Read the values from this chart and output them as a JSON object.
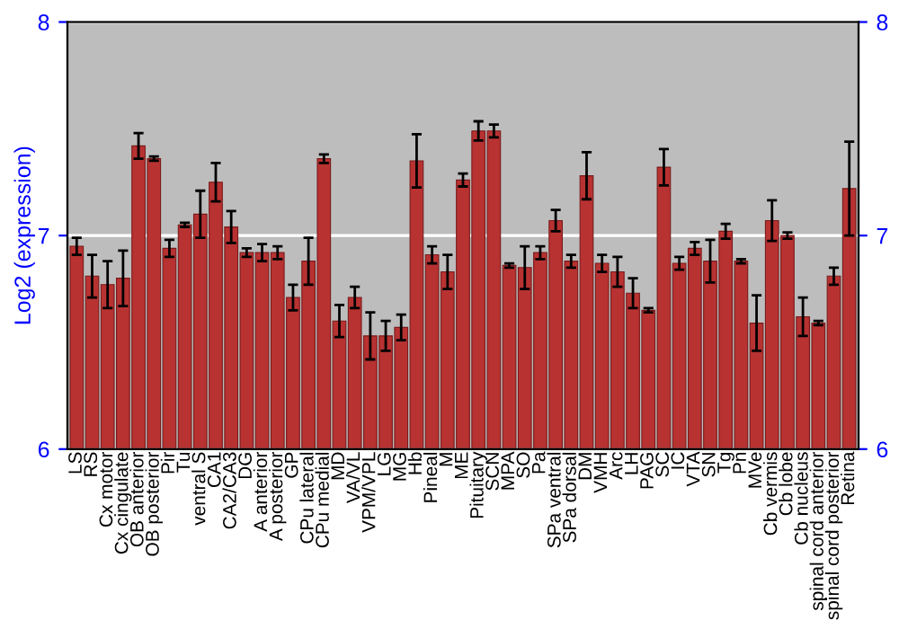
{
  "chart_data": {
    "type": "bar",
    "ylabel": "Log2 (expression)",
    "categories": [
      "LS",
      "RS",
      "Cx motor",
      "Cx cingulate",
      "OB anterior",
      "OB posterior",
      "Pir",
      "Tu",
      "ventral S",
      "CA1",
      "CA2/CA3",
      "DG",
      "A anterior",
      "A posterior",
      "GP",
      "CPu lateral",
      "CPu medial",
      "MD",
      "VA/VL",
      "VPM/VPL",
      "LG",
      "MG",
      "Hb",
      "Pineal",
      "M",
      "ME",
      "Pituitary",
      "SCN",
      "MPA",
      "SO",
      "Pa",
      "SPa ventral",
      "SPa dorsal",
      "DM",
      "VMH",
      "Arc",
      "LH",
      "PAG",
      "SC",
      "IC",
      "VTA",
      "SN",
      "Tg",
      "Pn",
      "MVe",
      "Cb vermis",
      "Cb lobe",
      "Cb nucleus",
      "spinal cord anterior",
      "spinal cord posterior",
      "Retina"
    ],
    "values": [
      6.95,
      6.81,
      6.77,
      6.8,
      7.42,
      7.36,
      6.94,
      7.05,
      7.1,
      7.25,
      7.04,
      6.92,
      6.92,
      6.92,
      6.71,
      6.88,
      7.36,
      6.6,
      6.71,
      6.53,
      6.53,
      6.57,
      7.35,
      6.91,
      6.83,
      7.26,
      7.49,
      7.49,
      6.86,
      6.85,
      6.92,
      7.07,
      6.88,
      7.28,
      6.87,
      6.83,
      6.73,
      6.65,
      7.32,
      6.87,
      6.94,
      6.88,
      7.02,
      6.88,
      6.59,
      7.07,
      7.0,
      6.62,
      6.59,
      6.81,
      7.22
    ],
    "errors": [
      0.04,
      0.1,
      0.11,
      0.13,
      0.06,
      0.01,
      0.04,
      0.01,
      0.11,
      0.09,
      0.075,
      0.02,
      0.04,
      0.03,
      0.06,
      0.11,
      0.02,
      0.075,
      0.05,
      0.11,
      0.07,
      0.06,
      0.125,
      0.04,
      0.08,
      0.03,
      0.045,
      0.03,
      0.01,
      0.1,
      0.03,
      0.05,
      0.03,
      0.11,
      0.04,
      0.07,
      0.07,
      0.01,
      0.085,
      0.03,
      0.03,
      0.1,
      0.035,
      0.01,
      0.13,
      0.095,
      0.015,
      0.09,
      0.01,
      0.04,
      0.22
    ],
    "color": "#b83232",
    "ylim": [
      6,
      8
    ],
    "yticks": [
      6,
      7,
      8
    ],
    "y2lim": [
      6,
      8
    ],
    "y2ticks": [
      6,
      7,
      8
    ],
    "grid": "y"
  }
}
